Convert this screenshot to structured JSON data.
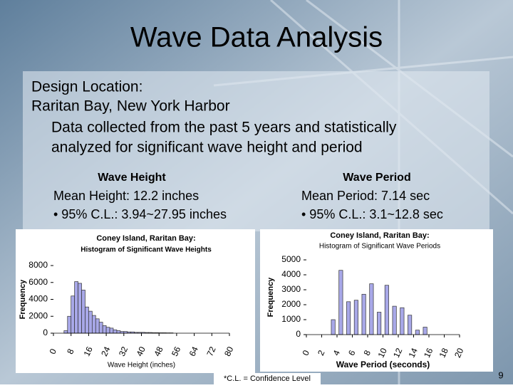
{
  "slide": {
    "title": "Wave Data Analysis",
    "body": [
      "Design Location:",
      "Raritan Bay, New York Harbor",
      "Data collected from the past 5 years and statistically",
      "analyzed for significant wave height and period"
    ],
    "columns": [
      {
        "heading": "Wave Height",
        "lines": [
          "Mean Height: 12.2 inches",
          "• 95% C.L.: 3.94~27.95 inches"
        ]
      },
      {
        "heading": "Wave Period",
        "lines": [
          "Mean Period: 7.14 sec",
          "• 95% C.L.: 3.1~12.8 sec"
        ]
      }
    ],
    "footnote": "*C.L. = Confidence Level",
    "page": "9"
  },
  "chart_data": [
    {
      "type": "histogram",
      "title": "Coney Island, Raritan Bay:",
      "subtitle": "Histogram of Significant Wave Heights",
      "x_label": "Wave Height (inches)",
      "y_label": "Frequency",
      "color": "#a8a8e8",
      "bins": [
        4.8,
        6.4,
        8.0,
        9.6,
        11.2,
        12.8,
        14.4,
        16.0,
        17.6,
        19.2,
        20.8,
        22.4,
        24.0,
        25.6,
        27.2,
        28.8,
        30.4,
        32.0,
        33.6,
        35.2,
        36.8,
        38.4,
        40.0,
        41.6,
        43.2,
        44.8,
        46.4,
        48.0,
        49.6,
        51.2,
        52.8,
        54.4
      ],
      "values": [
        300,
        2000,
        4400,
        6100,
        5900,
        5100,
        3100,
        2600,
        2100,
        1700,
        1300,
        900,
        700,
        600,
        400,
        300,
        200,
        200,
        150,
        150,
        100,
        100,
        100,
        80,
        80,
        60,
        60,
        50,
        50,
        40,
        40
      ],
      "xlim": [
        0,
        80
      ],
      "xticks": [
        0,
        8,
        16,
        24,
        32,
        40,
        48,
        56,
        64,
        72,
        80
      ],
      "ylim": [
        0,
        8000
      ],
      "yticks": [
        0,
        2000,
        4000,
        6000,
        8000
      ]
    },
    {
      "type": "histogram",
      "title": "Coney Island, Raritan Bay:",
      "subtitle": "Histogram of Significant Wave Periods",
      "x_label": "Wave Period (seconds)",
      "y_label": "Frequency",
      "color": "#a8a8e8",
      "bins": [
        3,
        4,
        5,
        6,
        7,
        8,
        9,
        10,
        11,
        12,
        13,
        14,
        15,
        16
      ],
      "values": [
        1000,
        4300,
        2200,
        2300,
        2700,
        3400,
        1500,
        3300,
        1900,
        1800,
        1300,
        300,
        500
      ],
      "xlim": [
        0,
        20
      ],
      "xticks": [
        0,
        2,
        4,
        6,
        8,
        10,
        12,
        14,
        16,
        18,
        20
      ],
      "ylim": [
        0,
        5000
      ],
      "yticks": [
        0,
        1000,
        2000,
        3000,
        4000,
        5000
      ]
    }
  ]
}
